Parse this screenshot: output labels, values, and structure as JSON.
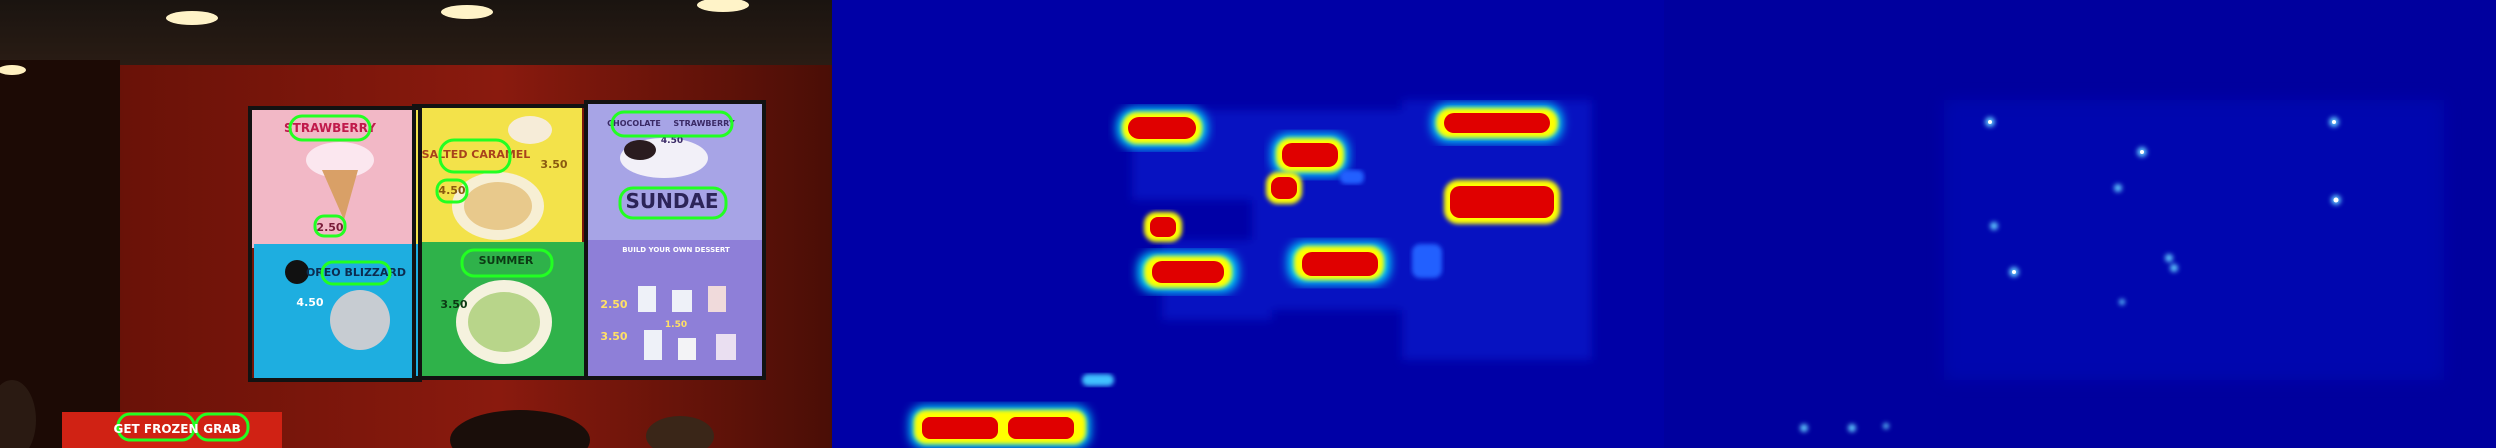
{
  "scene": {
    "panels": [
      {
        "name": "photo-with-detections",
        "kind": "photo"
      },
      {
        "name": "text-heatmap",
        "kind": "heatmap"
      },
      {
        "name": "character-heatmap",
        "kind": "heatmap"
      }
    ]
  },
  "menu": {
    "panel1": {
      "title": "STRAWBERRY",
      "price": "2.50"
    },
    "panel2": {
      "title": "SALTED CARAMEL",
      "price_a": "3.50",
      "price_b": "4.50"
    },
    "panel3": {
      "title_left": "CHOCOLATE",
      "title_right": "STRAWBERRY",
      "title_main": "SUNDAE",
      "price": "4.50"
    },
    "panel4": {
      "title": "OREO BLIZZARD",
      "price": "4.50"
    },
    "panel5": {
      "title": "SUMMER",
      "price": "3.50"
    },
    "panel6": {
      "heading": "BUILD YOUR OWN DESSERT",
      "price_a": "2.50",
      "price_b": "3.50",
      "price_c": "1.50"
    },
    "bottom_sign": {
      "text_a": "GET FROZEN",
      "text_b": "GRAB"
    }
  },
  "colors": {
    "detection": "#22ff22",
    "heat_hot": "#ff0000",
    "heat_warm": "#ffff00",
    "heat_cool": "#00ffff",
    "heat_bg": "#0000a6"
  }
}
